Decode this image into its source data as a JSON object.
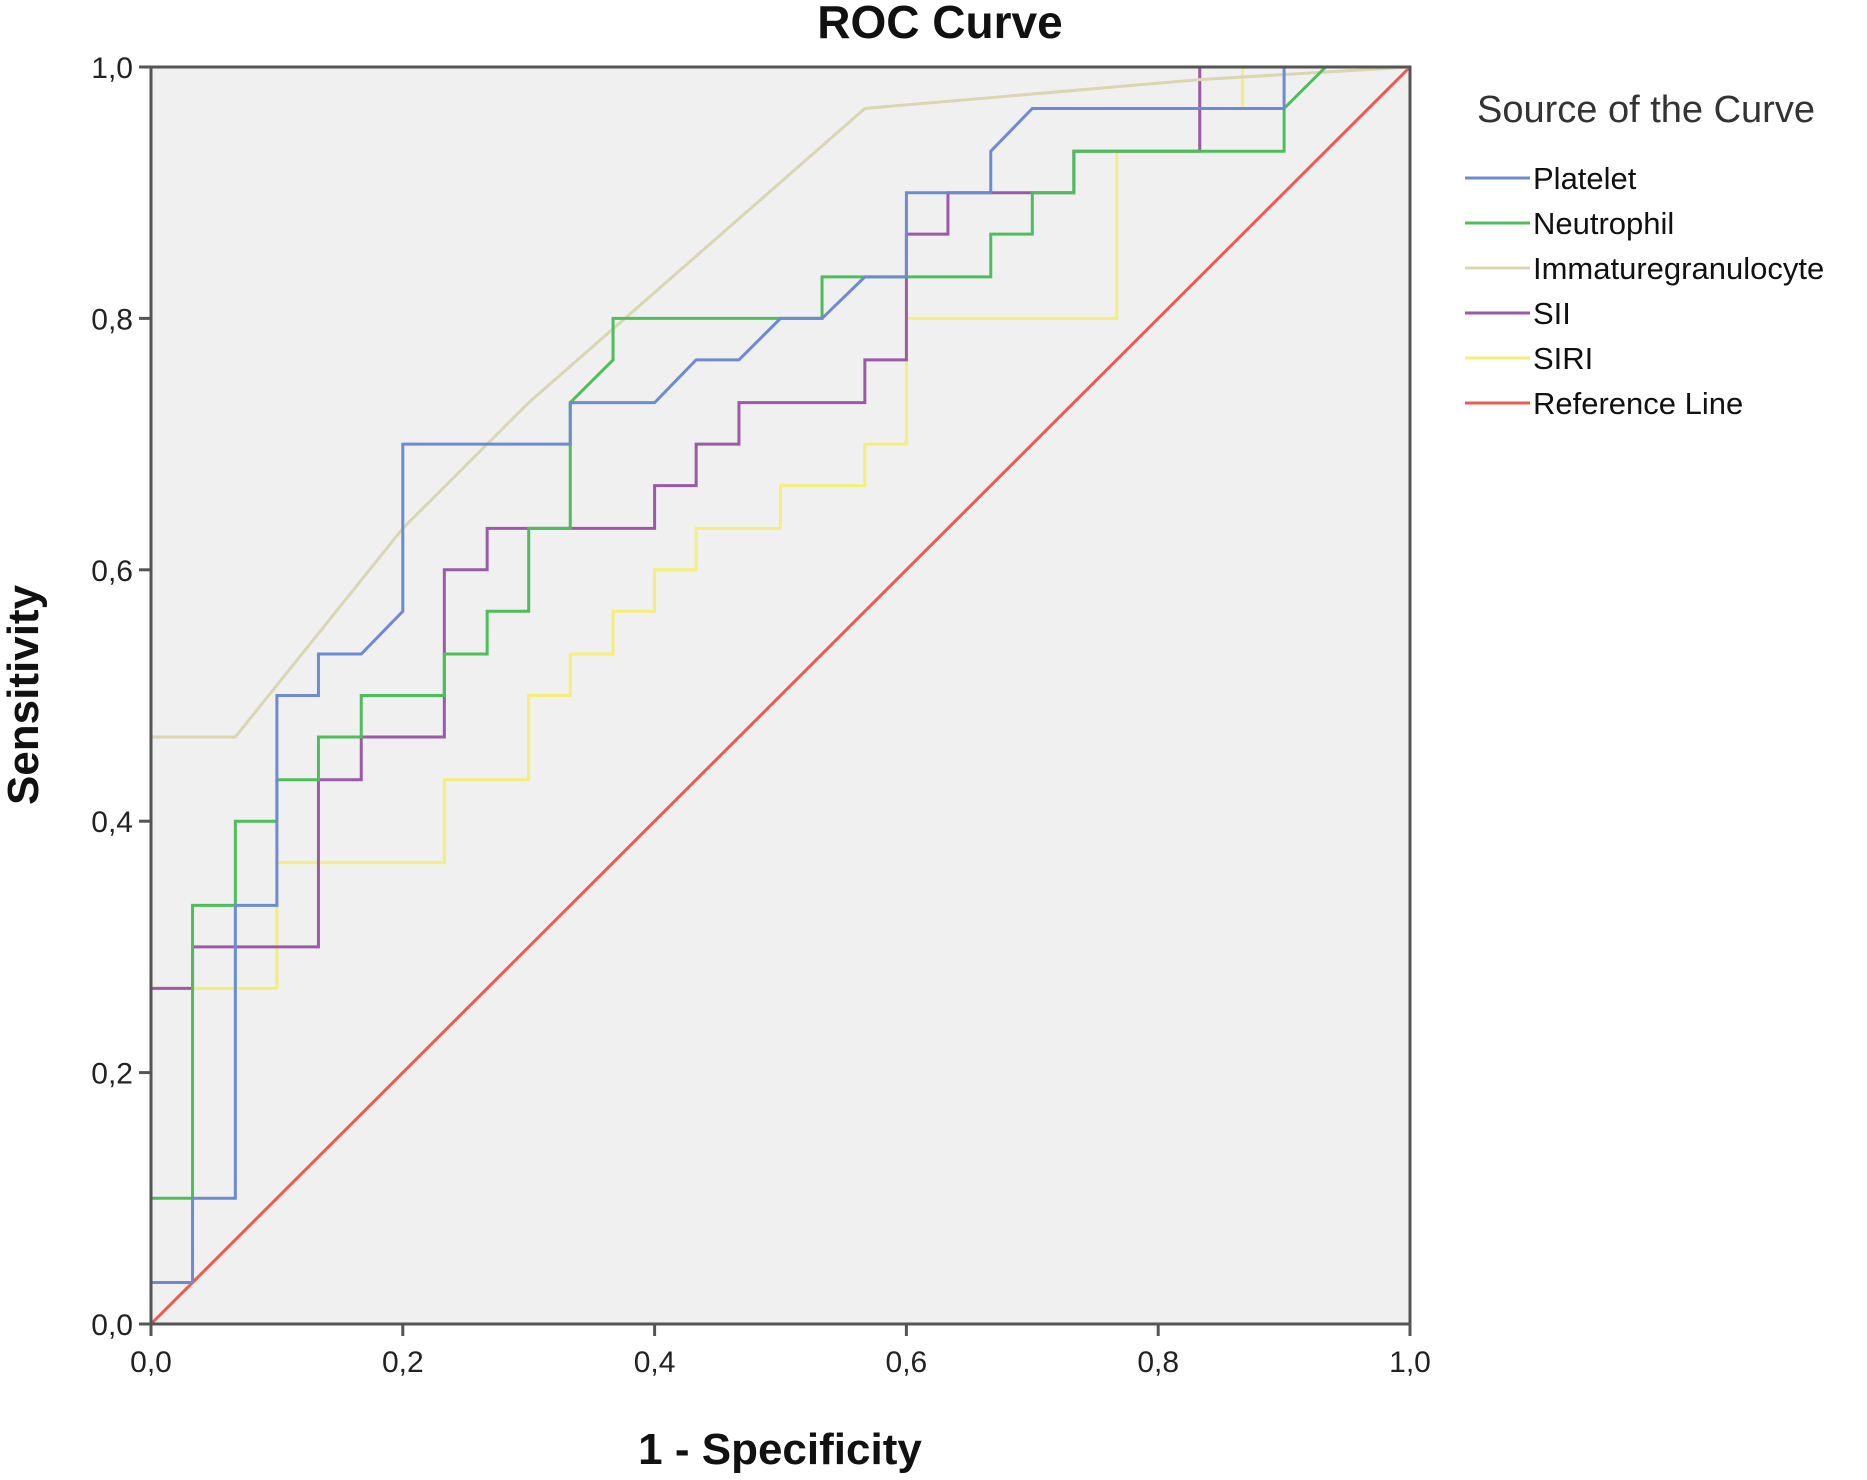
{
  "chart_data": {
    "type": "line",
    "title": "ROC Curve",
    "xlabel": "1 - Specificity",
    "ylabel": "Sensitivity",
    "xlim": [
      0,
      1
    ],
    "ylim": [
      0,
      1
    ],
    "xticks": [
      "0,0",
      "0,2",
      "0,4",
      "0,6",
      "0,8",
      "1,0"
    ],
    "yticks": [
      "0,0",
      "0,2",
      "0,4",
      "0,6",
      "0,8",
      "1,0"
    ],
    "legend_title": "Source of the Curve",
    "legend_position": "right",
    "series": [
      {
        "name": "Platelet",
        "color": "#6d8bd1",
        "points": [
          [
            0,
            0
          ],
          [
            0,
            0.033
          ],
          [
            0.033,
            0.033
          ],
          [
            0.033,
            0.1
          ],
          [
            0.067,
            0.1
          ],
          [
            0.067,
            0.333
          ],
          [
            0.1,
            0.333
          ],
          [
            0.1,
            0.5
          ],
          [
            0.133,
            0.5
          ],
          [
            0.133,
            0.533
          ],
          [
            0.167,
            0.533
          ],
          [
            0.2,
            0.567
          ],
          [
            0.2,
            0.7
          ],
          [
            0.333,
            0.7
          ],
          [
            0.333,
            0.733
          ],
          [
            0.4,
            0.733
          ],
          [
            0.433,
            0.767
          ],
          [
            0.467,
            0.767
          ],
          [
            0.5,
            0.8
          ],
          [
            0.533,
            0.8
          ],
          [
            0.567,
            0.833
          ],
          [
            0.6,
            0.833
          ],
          [
            0.6,
            0.9
          ],
          [
            0.667,
            0.9
          ],
          [
            0.667,
            0.933
          ],
          [
            0.7,
            0.967
          ],
          [
            0.9,
            0.967
          ],
          [
            0.9,
            1
          ],
          [
            1,
            1
          ]
        ]
      },
      {
        "name": "Neutrophil",
        "color": "#4cbf5a",
        "points": [
          [
            0,
            0
          ],
          [
            0,
            0.1
          ],
          [
            0.033,
            0.1
          ],
          [
            0.033,
            0.333
          ],
          [
            0.067,
            0.333
          ],
          [
            0.067,
            0.4
          ],
          [
            0.1,
            0.4
          ],
          [
            0.1,
            0.433
          ],
          [
            0.133,
            0.433
          ],
          [
            0.133,
            0.467
          ],
          [
            0.167,
            0.467
          ],
          [
            0.167,
            0.5
          ],
          [
            0.233,
            0.5
          ],
          [
            0.233,
            0.533
          ],
          [
            0.267,
            0.533
          ],
          [
            0.267,
            0.567
          ],
          [
            0.3,
            0.567
          ],
          [
            0.3,
            0.633
          ],
          [
            0.333,
            0.633
          ],
          [
            0.333,
            0.733
          ],
          [
            0.367,
            0.767
          ],
          [
            0.367,
            0.8
          ],
          [
            0.533,
            0.8
          ],
          [
            0.533,
            0.833
          ],
          [
            0.667,
            0.833
          ],
          [
            0.667,
            0.867
          ],
          [
            0.7,
            0.867
          ],
          [
            0.7,
            0.9
          ],
          [
            0.733,
            0.9
          ],
          [
            0.733,
            0.933
          ],
          [
            0.833,
            0.933
          ],
          [
            0.833,
            0.933
          ],
          [
            0.9,
            0.933
          ],
          [
            0.9,
            0.967
          ],
          [
            0.933,
            1
          ],
          [
            1,
            1
          ]
        ]
      },
      {
        "name": "Immaturegranulocyte",
        "color": "#d9d6b0",
        "points": [
          [
            0,
            0
          ],
          [
            0,
            0.467
          ],
          [
            0.067,
            0.467
          ],
          [
            0.2,
            0.633
          ],
          [
            0.3,
            0.733
          ],
          [
            0.567,
            0.967
          ],
          [
            0.833,
            0.99
          ],
          [
            1,
            1
          ]
        ]
      },
      {
        "name": "SII",
        "color": "#9a5aa8",
        "points": [
          [
            0,
            0
          ],
          [
            0,
            0.267
          ],
          [
            0.033,
            0.267
          ],
          [
            0.033,
            0.3
          ],
          [
            0.133,
            0.3
          ],
          [
            0.133,
            0.433
          ],
          [
            0.167,
            0.433
          ],
          [
            0.167,
            0.467
          ],
          [
            0.233,
            0.467
          ],
          [
            0.233,
            0.6
          ],
          [
            0.267,
            0.6
          ],
          [
            0.267,
            0.633
          ],
          [
            0.4,
            0.633
          ],
          [
            0.4,
            0.667
          ],
          [
            0.433,
            0.667
          ],
          [
            0.433,
            0.7
          ],
          [
            0.467,
            0.7
          ],
          [
            0.467,
            0.733
          ],
          [
            0.567,
            0.733
          ],
          [
            0.567,
            0.767
          ],
          [
            0.6,
            0.767
          ],
          [
            0.6,
            0.867
          ],
          [
            0.633,
            0.867
          ],
          [
            0.633,
            0.9
          ],
          [
            0.733,
            0.9
          ],
          [
            0.733,
            0.933
          ],
          [
            0.833,
            0.933
          ],
          [
            0.833,
            1
          ],
          [
            1,
            1
          ]
        ]
      },
      {
        "name": "SIRI",
        "color": "#f5ee7a",
        "points": [
          [
            0,
            0
          ],
          [
            0,
            0.267
          ],
          [
            0.1,
            0.267
          ],
          [
            0.1,
            0.367
          ],
          [
            0.233,
            0.367
          ],
          [
            0.233,
            0.433
          ],
          [
            0.3,
            0.433
          ],
          [
            0.3,
            0.5
          ],
          [
            0.333,
            0.5
          ],
          [
            0.333,
            0.533
          ],
          [
            0.367,
            0.533
          ],
          [
            0.367,
            0.567
          ],
          [
            0.4,
            0.567
          ],
          [
            0.4,
            0.6
          ],
          [
            0.433,
            0.6
          ],
          [
            0.433,
            0.633
          ],
          [
            0.5,
            0.633
          ],
          [
            0.5,
            0.667
          ],
          [
            0.567,
            0.667
          ],
          [
            0.567,
            0.7
          ],
          [
            0.6,
            0.7
          ],
          [
            0.6,
            0.8
          ],
          [
            0.767,
            0.8
          ],
          [
            0.767,
            0.933
          ],
          [
            0.833,
            0.933
          ],
          [
            0.833,
            0.967
          ],
          [
            0.867,
            0.967
          ],
          [
            0.867,
            1
          ],
          [
            1,
            1
          ]
        ]
      },
      {
        "name": "Reference Line",
        "color": "#ee5a4f",
        "points": [
          [
            0,
            0
          ],
          [
            1,
            1
          ]
        ]
      }
    ]
  }
}
